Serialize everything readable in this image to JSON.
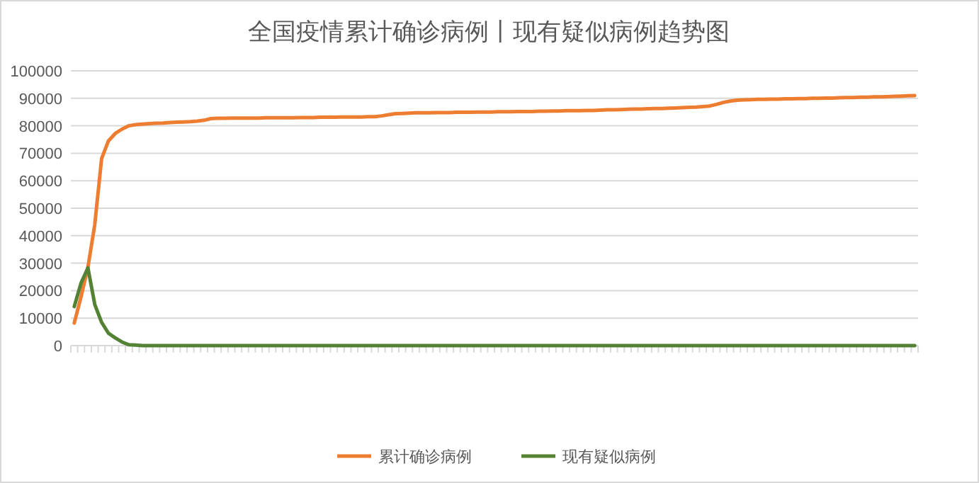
{
  "chart_data": {
    "type": "line",
    "title": "全国疫情累计确诊病例丨现有疑似病例趋势图",
    "categories": [
      null,
      null,
      null,
      null,
      null,
      null,
      null,
      null,
      null,
      null,
      null,
      null,
      null,
      null,
      null,
      null,
      null,
      null,
      null,
      null,
      null,
      null,
      null,
      null,
      null,
      null,
      null,
      null,
      null,
      null,
      null,
      null,
      null,
      null,
      null,
      null,
      null,
      null,
      null,
      null,
      null,
      null,
      null,
      null,
      null,
      null,
      null,
      null,
      null,
      null,
      null,
      null,
      null,
      null,
      null,
      null,
      null,
      null,
      null,
      null,
      null,
      null,
      null,
      null,
      null,
      null,
      null,
      null,
      null,
      null,
      null,
      null,
      null,
      null,
      null,
      null,
      null,
      null,
      null,
      null,
      null,
      null,
      null,
      null,
      null,
      null,
      null,
      null,
      null,
      null,
      null,
      null,
      null,
      null,
      null,
      null,
      null,
      null,
      null,
      null,
      null,
      null,
      null,
      null,
      null,
      null,
      null,
      null,
      null,
      null,
      null,
      null,
      null,
      null,
      null,
      null,
      null,
      null,
      null,
      null,
      null,
      null,
      null,
      null
    ],
    "series": [
      {
        "name": "累计确诊病例",
        "color": "#ed7d31",
        "values": [
          8200,
          17800,
          28500,
          44000,
          68000,
          74500,
          77200,
          78800,
          80000,
          80400,
          80600,
          80800,
          80900,
          81000,
          81200,
          81300,
          81400,
          81500,
          81700,
          82000,
          82600,
          82700,
          82700,
          82800,
          82800,
          82800,
          82800,
          82800,
          82900,
          82900,
          82900,
          82900,
          82900,
          83000,
          83000,
          83000,
          83100,
          83100,
          83100,
          83200,
          83200,
          83200,
          83200,
          83300,
          83300,
          83600,
          84000,
          84400,
          84500,
          84600,
          84700,
          84700,
          84700,
          84800,
          84800,
          84800,
          84900,
          84900,
          84900,
          85000,
          85000,
          85000,
          85100,
          85100,
          85100,
          85200,
          85200,
          85200,
          85300,
          85300,
          85400,
          85400,
          85500,
          85500,
          85500,
          85600,
          85600,
          85700,
          85800,
          85800,
          85900,
          86000,
          86100,
          86100,
          86200,
          86300,
          86300,
          86400,
          86500,
          86600,
          86700,
          86800,
          87000,
          87200,
          87800,
          88500,
          89000,
          89300,
          89400,
          89500,
          89600,
          89600,
          89700,
          89700,
          89800,
          89800,
          89900,
          89900,
          90000,
          90000,
          90100,
          90100,
          90200,
          90300,
          90300,
          90400,
          90400,
          90500,
          90500,
          90600,
          90700,
          90800,
          90900,
          91000
        ]
      },
      {
        "name": "现有疑似病例",
        "color": "#548235",
        "values": [
          14200,
          22800,
          28300,
          15000,
          8500,
          4500,
          2800,
          1300,
          300,
          200,
          0,
          0,
          0,
          0,
          0,
          0,
          0,
          0,
          0,
          0,
          0,
          0,
          0,
          0,
          0,
          0,
          0,
          0,
          0,
          0,
          0,
          0,
          0,
          0,
          0,
          0,
          0,
          0,
          0,
          0,
          0,
          0,
          0,
          0,
          0,
          0,
          0,
          0,
          0,
          0,
          0,
          0,
          0,
          0,
          0,
          0,
          0,
          0,
          0,
          0,
          0,
          0,
          0,
          0,
          0,
          0,
          0,
          0,
          0,
          0,
          0,
          0,
          0,
          0,
          0,
          0,
          0,
          0,
          0,
          0,
          0,
          0,
          0,
          0,
          0,
          0,
          0,
          0,
          0,
          0,
          0,
          0,
          0,
          0,
          0,
          0,
          0,
          0,
          0,
          0,
          0,
          0,
          0,
          0,
          0,
          0,
          0,
          0,
          0,
          0,
          0,
          0,
          0,
          0,
          0,
          0,
          0,
          0,
          0,
          0,
          0,
          0,
          0,
          0
        ]
      }
    ],
    "ylim": [
      0,
      100000
    ],
    "yticks": [
      0,
      10000,
      20000,
      30000,
      40000,
      50000,
      60000,
      70000,
      80000,
      90000,
      100000
    ],
    "grid": "y",
    "legend": "bottom",
    "marker": "none",
    "line_style": "solid"
  }
}
